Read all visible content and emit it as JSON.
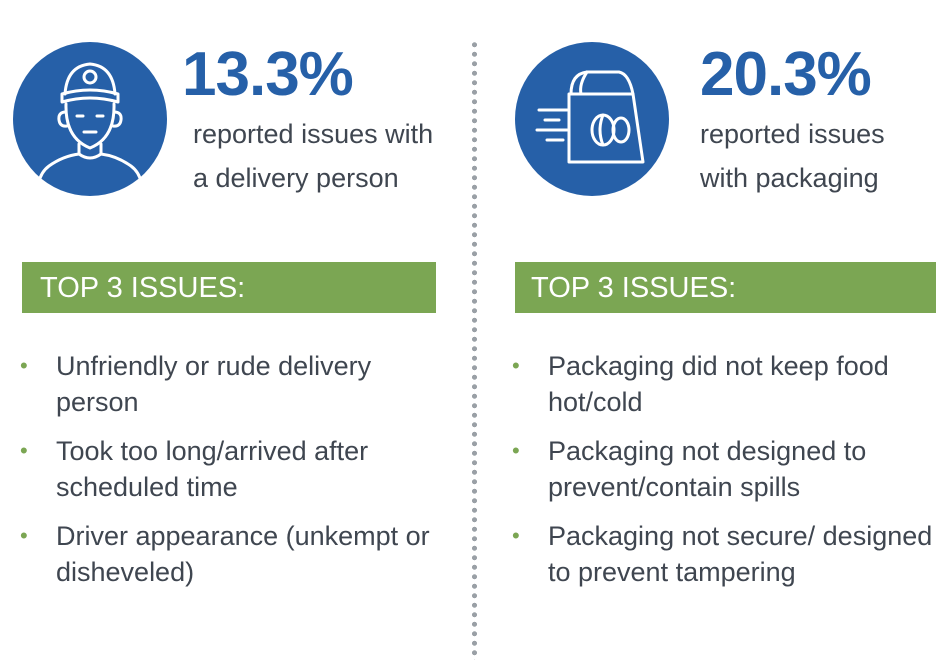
{
  "left": {
    "icon": "delivery-person-icon",
    "percent": "13.3%",
    "description": "reported issues with a delivery person",
    "banner": "TOP 3 ISSUES:",
    "issues": [
      "Unfriendly or rude delivery person",
      "Took too long/arrived after scheduled time",
      "Driver appearance (unkempt or disheveled)"
    ]
  },
  "right": {
    "icon": "food-bag-icon",
    "percent": "20.3%",
    "description": "reported issues with packaging",
    "banner": "TOP 3 ISSUES:",
    "issues": [
      "Packaging did not keep food hot/cold",
      "Packaging not designed to prevent/contain spills",
      "Packaging not secure/ designed to prevent tampering"
    ]
  },
  "colors": {
    "blue": "#2660a8",
    "green": "#7ba653",
    "text": "#3f4650",
    "dots": "#9aa0a6"
  }
}
